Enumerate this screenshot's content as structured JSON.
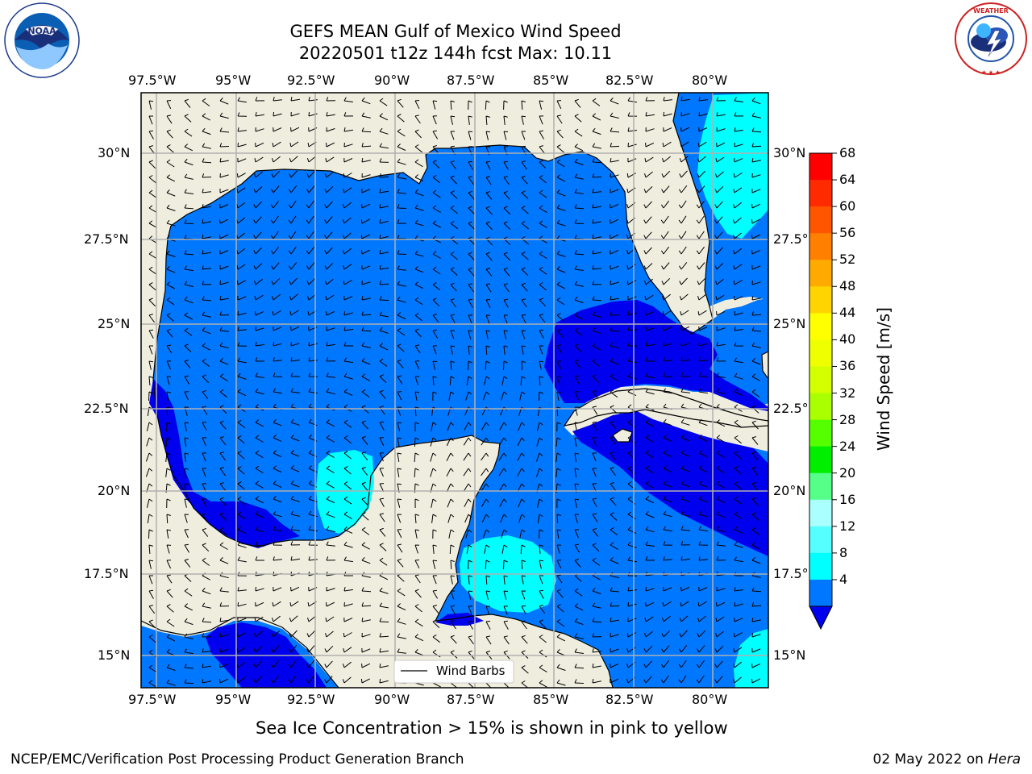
{
  "title": {
    "line1": "GEFS MEAN Gulf of Mexico Wind Speed",
    "line2": "20220501 t12z 144h fcst   Max: 10.11"
  },
  "logos": {
    "left": "NOAA",
    "right": "NATIONAL WEATHER SERVICE"
  },
  "map": {
    "lon_labels": [
      "97.5°W",
      "95°W",
      "92.5°W",
      "90°W",
      "87.5°W",
      "85°W",
      "82.5°W",
      "80°W"
    ],
    "lat_labels": [
      "30°N",
      "27.5°N",
      "25°N",
      "22.5°N",
      "20°N",
      "17.5°N",
      "15°N"
    ],
    "legend_label": "Wind Barbs",
    "colors": {
      "land": "#efedde",
      "ws_4_8": "#0077ff",
      "ws_lt_4": "#0000ee",
      "ws_8_12": "#00ffff",
      "grid": "#b0b0b0"
    }
  },
  "colorbar": {
    "label": "Wind Speed [m/s]",
    "ticks": [
      "68",
      "64",
      "60",
      "56",
      "52",
      "48",
      "44",
      "40",
      "36",
      "32",
      "28",
      "24",
      "20",
      "16",
      "12",
      "8",
      "4"
    ],
    "colors": [
      "#ff0000",
      "#ff2a00",
      "#ff5500",
      "#ff8000",
      "#ffaa00",
      "#ffd400",
      "#ffff00",
      "#f0ff00",
      "#d4ff00",
      "#aaff00",
      "#55ff00",
      "#00ee00",
      "#55ff88",
      "#aaffff",
      "#55ffff",
      "#00ffff",
      "#0077ff"
    ],
    "under_color": "#0000ee"
  },
  "note": "Sea Ice Concentration > 15% is shown in pink to yellow",
  "footer": {
    "left": "NCEP/EMC/Verification Post Processing Product Generation Branch",
    "date": "02 May 2022 on ",
    "machine": "Hera"
  }
}
